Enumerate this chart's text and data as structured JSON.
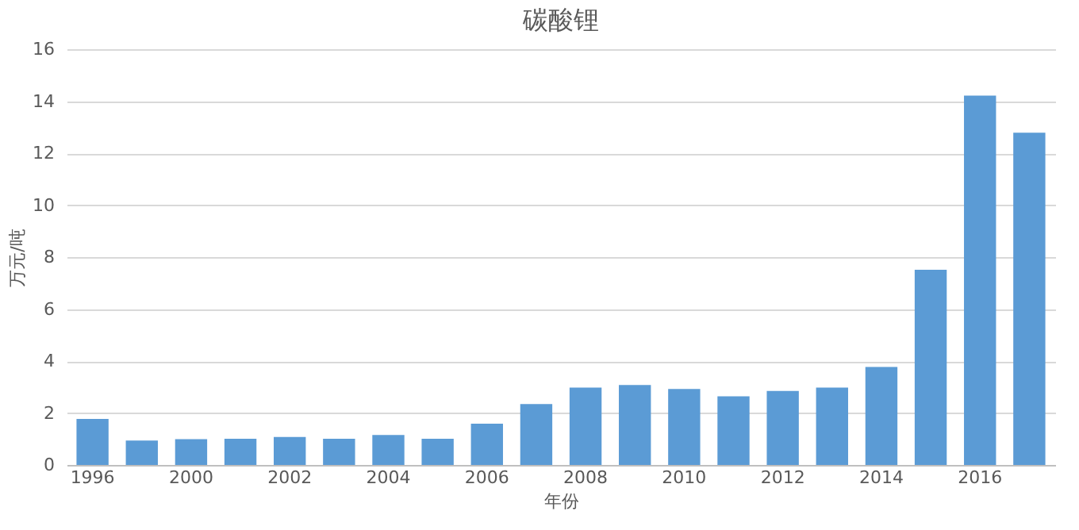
{
  "chart_data": {
    "type": "bar",
    "title": "碳酸锂",
    "xlabel": "年份",
    "ylabel": "万元/吨",
    "categories": [
      "1996",
      null,
      "2000",
      null,
      "2002",
      null,
      "2004",
      null,
      "2006",
      null,
      "2008",
      null,
      "2010",
      null,
      "2012",
      null,
      "2014",
      null,
      "2016",
      null
    ],
    "values": [
      1.77,
      0.94,
      0.99,
      1.01,
      1.08,
      1.01,
      1.15,
      1.01,
      1.59,
      2.34,
      2.98,
      3.08,
      2.92,
      2.64,
      2.85,
      2.98,
      3.77,
      7.51,
      14.21,
      12.79
    ],
    "color": "#5b9bd5",
    "ylim": [
      0,
      16
    ],
    "yticks": [
      0,
      2,
      4,
      6,
      8,
      10,
      12,
      14,
      16
    ],
    "grid": "y"
  }
}
